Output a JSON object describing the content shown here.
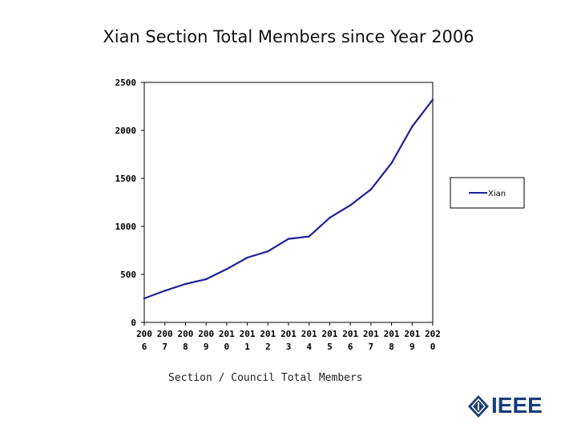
{
  "page": {
    "caption": "Section / Council Total Members",
    "logo_text": "IEEE"
  },
  "chart_data": {
    "type": "line",
    "title": "Xian Section Total Members since Year 2006",
    "xlabel": "",
    "ylabel": "",
    "categories": [
      "2006",
      "2007",
      "2008",
      "2009",
      "2010",
      "2011",
      "2012",
      "2013",
      "2014",
      "2015",
      "2016",
      "2017",
      "2018",
      "2019",
      "2020"
    ],
    "category_labels": [
      [
        "200",
        "6"
      ],
      [
        "200",
        "7"
      ],
      [
        "200",
        "8"
      ],
      [
        "200",
        "9"
      ],
      [
        "201",
        "0"
      ],
      [
        "201",
        "1"
      ],
      [
        "201",
        "2"
      ],
      [
        "201",
        "3"
      ],
      [
        "201",
        "4"
      ],
      [
        "201",
        "5"
      ],
      [
        "201",
        "6"
      ],
      [
        "201",
        "7"
      ],
      [
        "201",
        "8"
      ],
      [
        "201",
        "9"
      ],
      [
        "202",
        "0"
      ]
    ],
    "series": [
      {
        "name": "Xian",
        "color": "#1f1f99",
        "values": [
          250,
          330,
          400,
          450,
          555,
          675,
          740,
          870,
          895,
          1090,
          1220,
          1385,
          1660,
          2040,
          2320
        ]
      }
    ],
    "ylim": [
      0,
      2500
    ],
    "yticks": [
      "0",
      "500",
      "1000",
      "1500",
      "2000",
      "2500"
    ],
    "ytick_values": [
      0,
      500,
      1000,
      1500,
      2000,
      2500
    ],
    "grid": false,
    "legend_position": "right"
  }
}
